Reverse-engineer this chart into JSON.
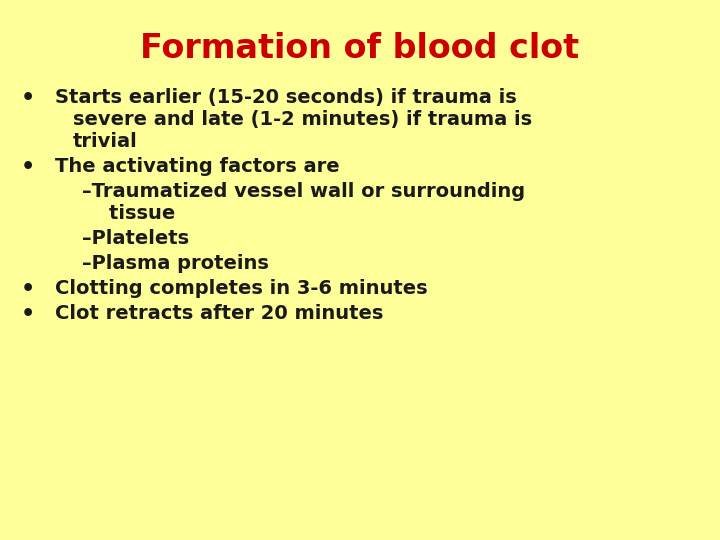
{
  "title": "Formation of blood clot",
  "title_color": "#cc0000",
  "title_fontsize": 24,
  "title_fontweight": "bold",
  "background_color": "#ffff99",
  "text_color": "#1a1a1a",
  "body_fontsize": 14,
  "bullet_symbol": "•",
  "items": [
    {
      "level": 0,
      "lines": [
        "Starts earlier (15-20 seconds) if trauma is",
        "severe and late (1-2 minutes) if trauma is",
        "trivial"
      ]
    },
    {
      "level": 0,
      "lines": [
        "The activating factors are"
      ]
    },
    {
      "level": 1,
      "lines": [
        "–Traumatized vessel wall or surrounding",
        "    tissue"
      ]
    },
    {
      "level": 1,
      "lines": [
        "–Platelets"
      ]
    },
    {
      "level": 1,
      "lines": [
        "–Plasma proteins"
      ]
    },
    {
      "level": 0,
      "lines": [
        "Clotting completes in 3-6 minutes"
      ]
    },
    {
      "level": 0,
      "lines": [
        "Clot retracts after 20 minutes"
      ]
    }
  ]
}
